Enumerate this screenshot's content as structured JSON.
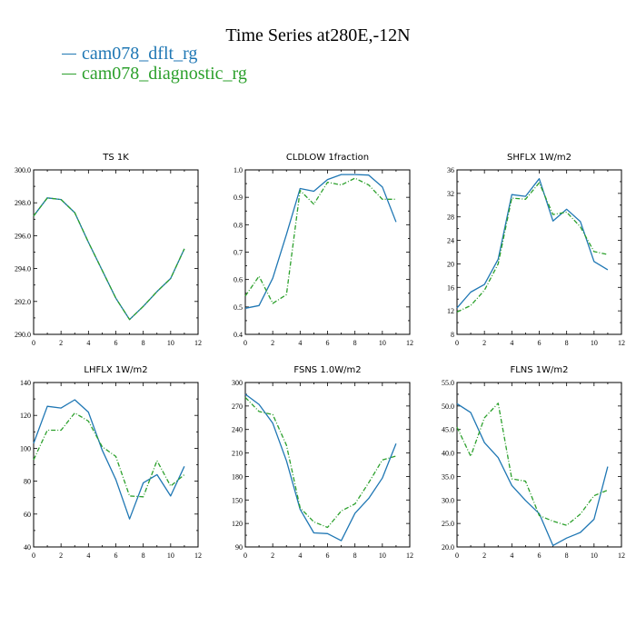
{
  "page": {
    "title": "Time Series at280E,-12N"
  },
  "legend": [
    {
      "name": "cam078_dflt_rg",
      "color": "#1f77b4",
      "dash": "solid"
    },
    {
      "name": "cam078_diagnostic_rg",
      "color": "#2ca02c",
      "dash": "dashdot"
    }
  ],
  "chart_data": [
    {
      "type": "line",
      "title": "TS   1K",
      "x": [
        0,
        1,
        2,
        3,
        4,
        5,
        6,
        7,
        8,
        9,
        10,
        11
      ],
      "xlim": [
        0,
        12
      ],
      "xticks": [
        "0",
        "2",
        "4",
        "6",
        "8",
        "10",
        "12"
      ],
      "ylim": [
        290,
        300
      ],
      "yticks": [
        "290.0",
        "292.0",
        "294.0",
        "296.0",
        "298.0",
        "300.0"
      ],
      "ytick_values": [
        290,
        292,
        294,
        296,
        298,
        300
      ],
      "series": [
        {
          "name": "cam078_dflt_rg",
          "values": [
            297.2,
            298.3,
            298.2,
            297.4,
            295.6,
            293.9,
            292.2,
            290.9,
            291.7,
            292.6,
            293.4,
            295.2
          ]
        },
        {
          "name": "cam078_diagnostic_rg",
          "values": [
            297.2,
            298.3,
            298.2,
            297.4,
            295.6,
            293.9,
            292.2,
            290.9,
            291.7,
            292.6,
            293.4,
            295.2
          ]
        }
      ]
    },
    {
      "type": "line",
      "title": "CLDLOW   1fraction",
      "x": [
        0,
        1,
        2,
        3,
        4,
        5,
        6,
        7,
        8,
        9,
        10,
        11
      ],
      "xlim": [
        0,
        12
      ],
      "xticks": [
        "0",
        "2",
        "4",
        "6",
        "8",
        "10",
        "12"
      ],
      "ylim": [
        0.4,
        1.0
      ],
      "yticks": [
        "0.4",
        "0.5",
        "0.6",
        "0.7",
        "0.8",
        "0.9",
        "1.0"
      ],
      "ytick_values": [
        0.4,
        0.5,
        0.6,
        0.7,
        0.8,
        0.9,
        1.0
      ],
      "series": [
        {
          "name": "cam078_dflt_rg",
          "values": [
            0.495,
            0.505,
            0.605,
            0.765,
            0.932,
            0.922,
            0.965,
            0.983,
            0.983,
            0.981,
            0.938,
            0.81
          ]
        },
        {
          "name": "cam078_diagnostic_rg",
          "values": [
            0.54,
            0.612,
            0.513,
            0.545,
            0.925,
            0.875,
            0.955,
            0.945,
            0.97,
            0.945,
            0.893,
            0.893
          ]
        }
      ]
    },
    {
      "type": "line",
      "title": "SHFLX   1W/m2",
      "x": [
        0,
        1,
        2,
        3,
        4,
        5,
        6,
        7,
        8,
        9,
        10,
        11
      ],
      "xlim": [
        0,
        12
      ],
      "xticks": [
        "0",
        "2",
        "4",
        "6",
        "8",
        "10",
        "12"
      ],
      "ylim": [
        8,
        36
      ],
      "yticks": [
        "8",
        "12",
        "16",
        "20",
        "24",
        "28",
        "32",
        "36"
      ],
      "ytick_values": [
        8,
        12,
        16,
        20,
        24,
        28,
        32,
        36
      ],
      "series": [
        {
          "name": "cam078_dflt_rg",
          "values": [
            12.5,
            15.2,
            16.5,
            20.8,
            31.8,
            31.5,
            34.5,
            27.3,
            29.3,
            27.2,
            20.4,
            19.0
          ]
        },
        {
          "name": "cam078_diagnostic_rg",
          "values": [
            11.8,
            12.9,
            15.5,
            20.0,
            31.2,
            31.0,
            33.8,
            28.4,
            28.8,
            26.3,
            22.1,
            21.6
          ]
        }
      ]
    },
    {
      "type": "line",
      "title": "LHFLX   1W/m2",
      "x": [
        0,
        1,
        2,
        3,
        4,
        5,
        6,
        7,
        8,
        9,
        10,
        11
      ],
      "xlim": [
        0,
        12
      ],
      "xticks": [
        "0",
        "2",
        "4",
        "6",
        "8",
        "10",
        "12"
      ],
      "ylim": [
        40,
        140
      ],
      "yticks": [
        "40",
        "60",
        "80",
        "100",
        "120",
        "140"
      ],
      "ytick_values": [
        40,
        60,
        80,
        100,
        120,
        140
      ],
      "series": [
        {
          "name": "cam078_dflt_rg",
          "values": [
            103,
            125.5,
            124.5,
            129.5,
            122,
            99,
            81,
            57,
            79,
            84,
            71,
            89
          ]
        },
        {
          "name": "cam078_diagnostic_rg",
          "values": [
            93,
            111,
            111,
            121.5,
            116.5,
            101,
            95,
            71,
            70.5,
            92.5,
            77,
            84
          ]
        }
      ]
    },
    {
      "type": "line",
      "title": "FSNS   1.0W/m2",
      "x": [
        0,
        1,
        2,
        3,
        4,
        5,
        6,
        7,
        8,
        9,
        10,
        11
      ],
      "xlim": [
        0,
        12
      ],
      "xticks": [
        "0",
        "2",
        "4",
        "6",
        "8",
        "10",
        "12"
      ],
      "ylim": [
        90,
        300
      ],
      "yticks": [
        "90",
        "120",
        "150",
        "180",
        "210",
        "240",
        "270",
        "300"
      ],
      "ytick_values": [
        90,
        120,
        150,
        180,
        210,
        240,
        270,
        300
      ],
      "series": [
        {
          "name": "cam078_dflt_rg",
          "values": [
            285,
            272,
            248,
            200,
            138,
            108,
            107,
            98,
            133,
            152,
            178,
            222
          ]
        },
        {
          "name": "cam078_diagnostic_rg",
          "values": [
            281,
            263,
            259,
            220,
            140,
            122,
            115,
            136,
            145,
            172,
            201,
            206
          ]
        }
      ]
    },
    {
      "type": "line",
      "title": "FLNS   1W/m2",
      "x": [
        0,
        1,
        2,
        3,
        4,
        5,
        6,
        7,
        8,
        9,
        10,
        11
      ],
      "xlim": [
        0,
        12
      ],
      "xticks": [
        "0",
        "2",
        "4",
        "6",
        "8",
        "10",
        "12"
      ],
      "ylim": [
        20,
        55
      ],
      "yticks": [
        "20.0",
        "25.0",
        "30.0",
        "35.0",
        "40.0",
        "45.0",
        "50.0",
        "55.0"
      ],
      "ytick_values": [
        20,
        25,
        30,
        35,
        40,
        45,
        50,
        55
      ],
      "series": [
        {
          "name": "cam078_dflt_rg",
          "values": [
            50.5,
            48.6,
            42.2,
            39.0,
            33.1,
            29.9,
            27.1,
            20.3,
            21.9,
            23.1,
            25.9,
            37.1
          ]
        },
        {
          "name": "cam078_diagnostic_rg",
          "values": [
            45.5,
            39.3,
            47.5,
            50.6,
            34.5,
            34.0,
            26.7,
            25.5,
            24.6,
            27.0,
            30.9,
            32.1
          ]
        }
      ]
    }
  ]
}
